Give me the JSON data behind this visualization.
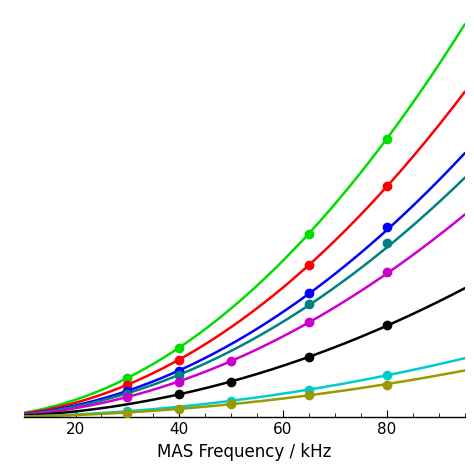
{
  "xlabel": "MAS Frequency / kHz",
  "xlim": [
    10,
    95
  ],
  "ylim": [
    0,
    0.3
  ],
  "xticks": [
    20,
    40,
    60,
    80
  ],
  "background_color": "#ffffff",
  "series": [
    {
      "color": "#00dd00",
      "line_color": "#00dd00",
      "a": 3.2e-05,
      "exp_points": [
        [
          30,
          0.029
        ],
        [
          40,
          0.051
        ],
        [
          65,
          0.135
        ],
        [
          80,
          0.205
        ]
      ]
    },
    {
      "color": "#ff0000",
      "line_color": "#ff0000",
      "a": 2.65e-05,
      "exp_points": [
        [
          30,
          0.024
        ],
        [
          40,
          0.042
        ],
        [
          65,
          0.112
        ],
        [
          80,
          0.17
        ]
      ]
    },
    {
      "color": "#0000ff",
      "line_color": "#0000ff",
      "a": 2.15e-05,
      "exp_points": [
        [
          30,
          0.019
        ],
        [
          40,
          0.034
        ],
        [
          65,
          0.091
        ],
        [
          80,
          0.14
        ]
      ]
    },
    {
      "color": "#008080",
      "line_color": "#008080",
      "a": 1.95e-05,
      "exp_points": [
        [
          30,
          0.017
        ],
        [
          40,
          0.031
        ],
        [
          65,
          0.083
        ],
        [
          80,
          0.128
        ]
      ]
    },
    {
      "color": "#cc00cc",
      "line_color": "#cc00cc",
      "a": 1.65e-05,
      "exp_points": [
        [
          30,
          0.015
        ],
        [
          40,
          0.026
        ],
        [
          50,
          0.041
        ],
        [
          65,
          0.07
        ],
        [
          80,
          0.107
        ]
      ]
    },
    {
      "color": "#000000",
      "line_color": "#000000",
      "a": 1.05e-05,
      "exp_points": [
        [
          40,
          0.017
        ],
        [
          50,
          0.026
        ],
        [
          65,
          0.044
        ],
        [
          80,
          0.068
        ]
      ]
    },
    {
      "color": "#00cccc",
      "line_color": "#00cccc",
      "a": 4.8e-06,
      "exp_points": [
        [
          30,
          0.0043
        ],
        [
          50,
          0.012
        ],
        [
          65,
          0.02
        ],
        [
          80,
          0.031
        ]
      ]
    },
    {
      "color": "#999900",
      "line_color": "#999900",
      "a": 3.8e-06,
      "exp_points": [
        [
          30,
          0.0034
        ],
        [
          40,
          0.0061
        ],
        [
          50,
          0.0095
        ],
        [
          65,
          0.016
        ],
        [
          80,
          0.024
        ]
      ]
    }
  ]
}
